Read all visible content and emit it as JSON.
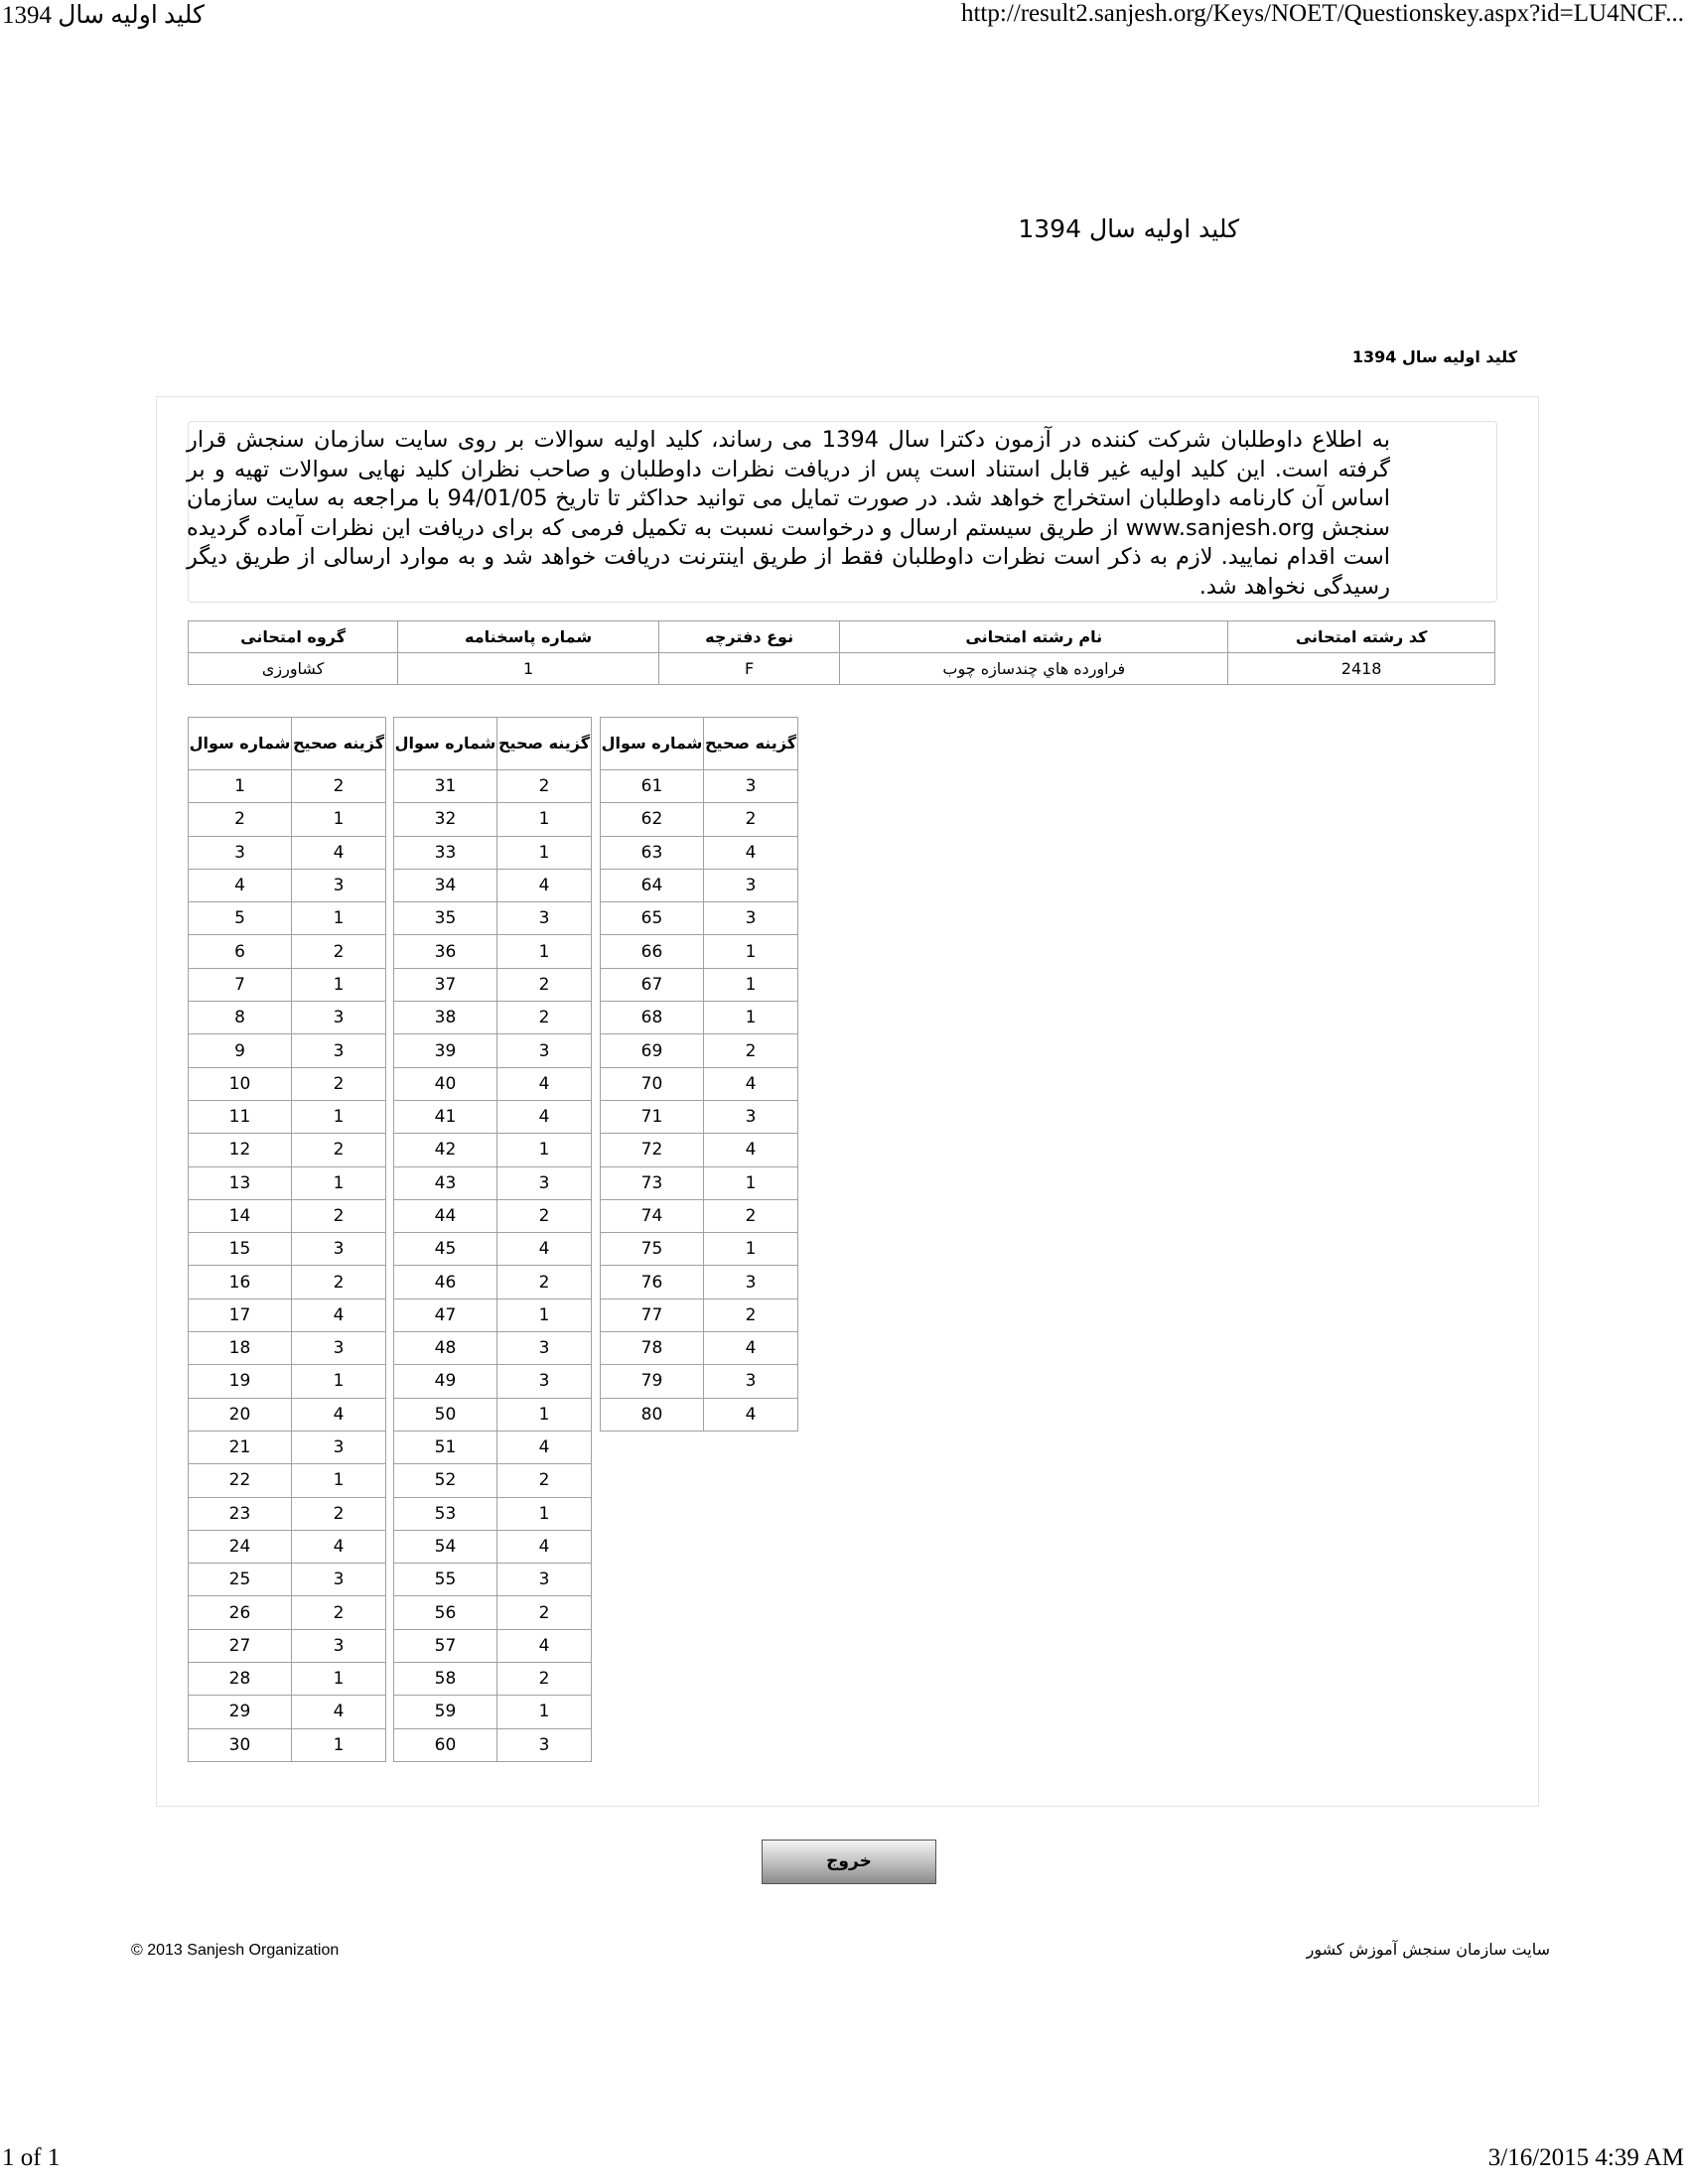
{
  "print_header": {
    "page_title": "کلید اولیه سال 1394",
    "url": "http://result2.sanjesh.org/Keys/NOET/Questionskey.aspx?id=LU4NCF...",
    "page_count": "1 of 1",
    "datetime": "3/16/2015 4:39 AM"
  },
  "title": "کلید اولیه سال 1394",
  "subtitle": "کلید اولیه سال 1394",
  "notice": "به اطلاع داوطلبان شرکت کننده در آزمون دکترا سال 1394 می رساند، کلید اولیه سوالات بر روی سایت سازمان سنجش قرار گرفته است. این کلید اولیه غیر قابل استناد است پس از دریافت نظرات داوطلبان و صاحب نظران کلید نهایی سوالات تهیه و بر اساس آن کارنامه داوطلبان استخراج خواهد شد. در صورت تمایل می توانید حداکثر تا تاریخ 94/01/05 با مراجعه به سایت سازمان سنجش www.sanjesh.org از طریق  سیستم ارسال و درخواست نسبت به تکمیل فرمی که برای دریافت این نظرات آماده گردیده است اقدام نمایید. لازم به ذکر است نظرات داوطلبان فقط از طریق اینترنت دریافت خواهد شد و به موارد ارسالی از طریق دیگر رسیدگی نخواهد شد.",
  "info_table": {
    "headers": [
      "کد رشته امتحانی",
      "نام رشته امتحانی",
      "نوع دفترچه",
      "شماره پاسخنامه",
      "گروه امتحانی"
    ],
    "row": [
      "2418",
      "فراورده هاي چندسازه چوب",
      "F",
      "1",
      "کشاورزی"
    ]
  },
  "key_headers": {
    "question": "شماره سوال",
    "answer": "گزینه صحیح"
  },
  "answers": [
    2,
    1,
    4,
    3,
    1,
    2,
    1,
    3,
    3,
    2,
    1,
    2,
    1,
    2,
    3,
    2,
    4,
    3,
    1,
    4,
    3,
    1,
    2,
    4,
    3,
    2,
    3,
    1,
    4,
    1,
    2,
    1,
    1,
    4,
    3,
    1,
    2,
    2,
    3,
    4,
    4,
    1,
    3,
    2,
    4,
    2,
    1,
    3,
    3,
    1,
    4,
    2,
    1,
    4,
    3,
    2,
    4,
    2,
    1,
    3,
    3,
    2,
    4,
    3,
    3,
    1,
    1,
    1,
    2,
    4,
    3,
    4,
    1,
    2,
    1,
    3,
    2,
    4,
    3,
    4
  ],
  "exit_button": "خروج",
  "footer": {
    "copyright": "© 2013 Sanjesh Organization",
    "site_link": "سایت سازمان سنجش آموزش کشور"
  }
}
